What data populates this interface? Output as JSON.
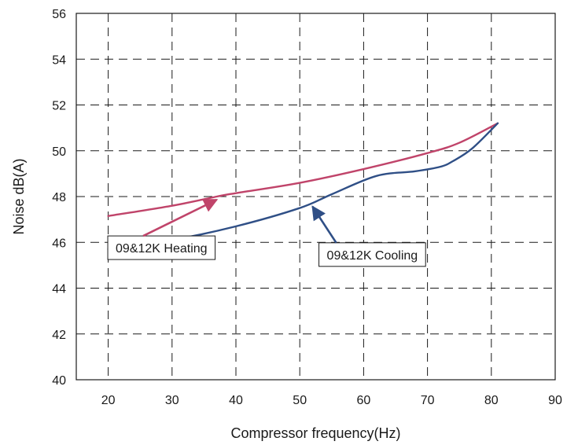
{
  "chart_data": {
    "type": "line",
    "title": "",
    "xlabel": "Compressor frequency(Hz)",
    "ylabel": "Noise dB(A)",
    "xlim": [
      15,
      90
    ],
    "ylim": [
      40,
      56
    ],
    "xticks": [
      20,
      30,
      40,
      50,
      60,
      70,
      80,
      90
    ],
    "yticks": [
      40,
      42,
      44,
      46,
      48,
      50,
      52,
      54,
      56
    ],
    "grid": true,
    "grid_style": "dashed",
    "legend": "none",
    "series": [
      {
        "name": "09&12K Heating",
        "color": "#c0446a",
        "x": [
          20,
          30,
          37,
          40,
          50,
          60,
          70,
          75,
          81
        ],
        "y": [
          47.15,
          47.6,
          48.0,
          48.15,
          48.6,
          49.2,
          49.9,
          50.35,
          51.2
        ]
      },
      {
        "name": "09&12K Cooling",
        "color": "#2f4f86",
        "x": [
          20,
          30,
          40,
          50,
          55,
          62,
          68,
          72,
          74,
          77,
          81
        ],
        "y": [
          45.7,
          46.1,
          46.7,
          47.5,
          48.1,
          48.9,
          49.1,
          49.3,
          49.55,
          50.1,
          51.2
        ]
      }
    ],
    "annotations": [
      {
        "text": "09&12K Heating",
        "series": 0,
        "point": [
          37,
          48.0
        ],
        "box_at": [
          32,
          45.8
        ]
      },
      {
        "text": "09&12K Cooling",
        "series": 1,
        "point": [
          52,
          47.7
        ],
        "box_at": [
          53,
          45.5
        ]
      }
    ]
  }
}
